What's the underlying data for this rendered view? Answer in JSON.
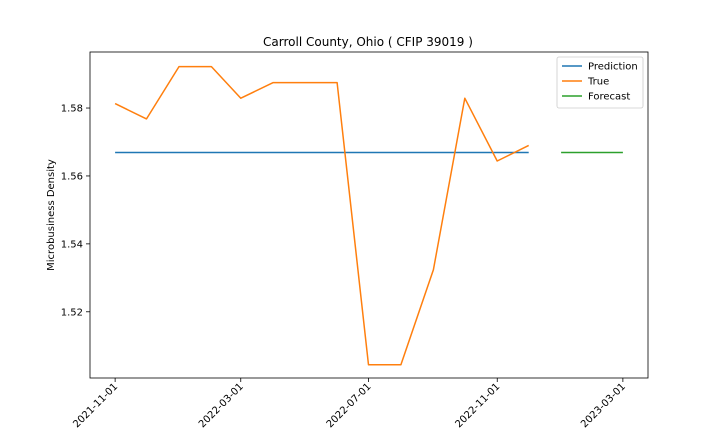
{
  "chart_data": {
    "type": "line",
    "title": "Carroll County, Ohio ( CFIP 39019 )",
    "xlabel": "",
    "ylabel": "Microbusiness Density",
    "xlim": [
      "2021-10-08",
      "2023-03-25"
    ],
    "ylim": [
      1.5005,
      1.5965
    ],
    "x_ticks": [
      "2021-11-01",
      "2022-03-01",
      "2022-07-01",
      "2022-11-01",
      "2023-03-01"
    ],
    "y_ticks": [
      1.52,
      1.54,
      1.56,
      1.58
    ],
    "y_tick_labels": [
      "1.52",
      "1.54",
      "1.56",
      "1.58"
    ],
    "grid": false,
    "legend_position": "top-right",
    "series": [
      {
        "name": "Prediction",
        "color": "#1f77b4",
        "x": [
          "2021-11-01",
          "2022-12-01"
        ],
        "y": [
          1.5669,
          1.5669
        ]
      },
      {
        "name": "True",
        "color": "#ff7f0e",
        "x": [
          "2021-11-01",
          "2021-12-01",
          "2022-01-01",
          "2022-02-01",
          "2022-03-01",
          "2022-04-01",
          "2022-05-01",
          "2022-06-01",
          "2022-07-01",
          "2022-08-01",
          "2022-09-01",
          "2022-10-01",
          "2022-11-01",
          "2022-12-01"
        ],
        "y": [
          1.5813,
          1.5768,
          1.5922,
          1.5922,
          1.5829,
          1.5875,
          1.5875,
          1.5875,
          1.5044,
          1.5044,
          1.5324,
          1.5829,
          1.5644,
          1.569
        ]
      },
      {
        "name": "Forecast",
        "color": "#2ca02c",
        "x": [
          "2023-01-01",
          "2023-03-01"
        ],
        "y": [
          1.5669,
          1.5669
        ]
      }
    ]
  }
}
